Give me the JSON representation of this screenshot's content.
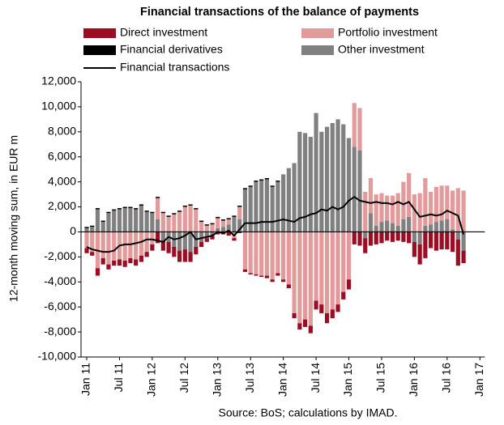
{
  "chart_data": {
    "type": "bar",
    "stacked": true,
    "title": "Financial transactions of the balance of payments",
    "ylabel": "12-month moving sum, in EUR m",
    "source": "Source: BoS; calculations by IMAD.",
    "categories": [
      "Jan 11",
      null,
      null,
      null,
      null,
      null,
      "Jul 11",
      null,
      null,
      null,
      null,
      null,
      "Jan 12",
      null,
      null,
      null,
      null,
      null,
      "Jul 12",
      null,
      null,
      null,
      null,
      null,
      "Jan 13",
      null,
      null,
      null,
      null,
      null,
      "Jul 13",
      null,
      null,
      null,
      null,
      null,
      "Jan 14",
      null,
      null,
      null,
      null,
      null,
      "Jul 14",
      null,
      null,
      null,
      null,
      null,
      "Jan 15",
      null,
      null,
      null,
      null,
      null,
      "Jul 15",
      null,
      null,
      null,
      null,
      null,
      "Jan 16",
      null,
      null,
      null,
      null,
      null,
      "Jul 16",
      null,
      null,
      null,
      null,
      null,
      "Jan 17"
    ],
    "ylim": [
      -10000,
      12000
    ],
    "yticks": [
      {
        "value": -10000,
        "label": "-10,000"
      },
      {
        "value": -8000,
        "label": "-8,000"
      },
      {
        "value": -6000,
        "label": "-6,000"
      },
      {
        "value": -4000,
        "label": "-4,000"
      },
      {
        "value": -2000,
        "label": "-2,000"
      },
      0,
      {
        "value": 2000,
        "label": "2,000"
      },
      {
        "value": 4000,
        "label": "4,000"
      },
      {
        "value": 6000,
        "label": "6,000"
      },
      {
        "value": 8000,
        "label": "8,000"
      },
      {
        "value": 10000,
        "label": "10,000"
      },
      {
        "value": 12000,
        "label": "12,000"
      }
    ],
    "series": [
      {
        "name": "Direct investment",
        "type": "bar",
        "color": "#9b0d22",
        "values": [
          -400,
          -300,
          -600,
          -500,
          -400,
          -400,
          -500,
          -500,
          -400,
          -500,
          -500,
          -400,
          -500,
          -900,
          -800,
          -900,
          -800,
          -900,
          -1000,
          -800,
          -600,
          -400,
          -300,
          -300,
          -200,
          -200,
          -300,
          -200,
          -100,
          -200,
          -100,
          -100,
          -100,
          -200,
          -200,
          -200,
          -200,
          -300,
          -400,
          -500,
          -600,
          -600,
          -700,
          -700,
          -800,
          -700,
          -600,
          -600,
          -800,
          -1000,
          -1100,
          -1200,
          -1100,
          -1000,
          -900,
          -700,
          -800,
          -700,
          -800,
          -900,
          -1200,
          -1600,
          -2100,
          -1300,
          -1500,
          -1400,
          -1400,
          -1600,
          -2100,
          -1000,
          null,
          null,
          null
        ]
      },
      {
        "name": "Portfolio investment",
        "type": "bar",
        "color": "#e39a9a",
        "values": [
          -1300,
          -1600,
          -2900,
          -2100,
          -2600,
          -2300,
          -2200,
          -2300,
          -2100,
          -2200,
          -1900,
          -1600,
          -1000,
          1700,
          1500,
          1200,
          1400,
          1600,
          2000,
          2100,
          1800,
          800,
          500,
          600,
          800,
          500,
          400,
          -500,
          1000,
          -3000,
          -3300,
          -3400,
          -3500,
          -3500,
          -3800,
          -3300,
          -3800,
          -4200,
          -6500,
          -7300,
          -7000,
          -7500,
          -5500,
          -5800,
          -6500,
          -6200,
          -5800,
          -4800,
          -3800,
          3500,
          3400,
          3200,
          2800,
          2500,
          2300,
          2000,
          2200,
          2600,
          3000,
          3500,
          3000,
          3100,
          3800,
          2600,
          2800,
          2800,
          2700,
          3100,
          3500,
          3300,
          null,
          null,
          null
        ]
      },
      {
        "name": "Financial derivatives",
        "type": "bar",
        "color": "#000000",
        "values": [
          100,
          100,
          100,
          100,
          100,
          100,
          100,
          100,
          100,
          100,
          100,
          100,
          100,
          100,
          100,
          100,
          100,
          100,
          100,
          100,
          100,
          100,
          100,
          100,
          100,
          100,
          100,
          100,
          100,
          100,
          100,
          100,
          100,
          100,
          100,
          100,
          0,
          0,
          0,
          0,
          0,
          0,
          0,
          0,
          0,
          0,
          0,
          0,
          0,
          0,
          0,
          0,
          0,
          0,
          0,
          0,
          0,
          0,
          0,
          0,
          0,
          0,
          0,
          0,
          0,
          0,
          0,
          0,
          0,
          0,
          null,
          null,
          null
        ]
      },
      {
        "name": "Other investment",
        "type": "bar",
        "color": "#808080",
        "values": [
          300,
          400,
          1800,
          800,
          1500,
          1700,
          1800,
          1900,
          1900,
          1800,
          2100,
          1600,
          1500,
          1000,
          -700,
          -800,
          -1200,
          -1500,
          -1400,
          -1600,
          -1200,
          -800,
          -500,
          -300,
          300,
          400,
          600,
          1200,
          1000,
          3400,
          3600,
          4000,
          4100,
          4200,
          3600,
          4000,
          4600,
          5100,
          5500,
          8000,
          7900,
          7600,
          9500,
          8000,
          8400,
          8700,
          9000,
          8600,
          7500,
          6800,
          6500,
          -500,
          1500,
          500,
          800,
          900,
          700,
          500,
          1000,
          1200,
          -800,
          -1000,
          500,
          600,
          800,
          900,
          1000,
          200,
          -600,
          -1500,
          null,
          null,
          null
        ]
      },
      {
        "name": "Financial transactions",
        "type": "line",
        "color": "#000000",
        "values": [
          -1200,
          -1400,
          -1500,
          -1600,
          -1600,
          -1500,
          -1100,
          -1000,
          -1000,
          -900,
          -800,
          -600,
          -600,
          -700,
          -800,
          -400,
          -600,
          -500,
          -300,
          0,
          -600,
          -500,
          -400,
          -300,
          0,
          -100,
          100,
          -300,
          200,
          700,
          700,
          700,
          800,
          800,
          800,
          900,
          1000,
          900,
          800,
          1100,
          1200,
          1400,
          1500,
          1800,
          1700,
          2000,
          1800,
          2000,
          2500,
          2800,
          2500,
          2400,
          2300,
          2400,
          2300,
          2300,
          2200,
          2400,
          2200,
          2400,
          1800,
          1200,
          1300,
          1400,
          1300,
          1400,
          1700,
          1500,
          1300,
          -200,
          null,
          null,
          null
        ]
      }
    ]
  }
}
